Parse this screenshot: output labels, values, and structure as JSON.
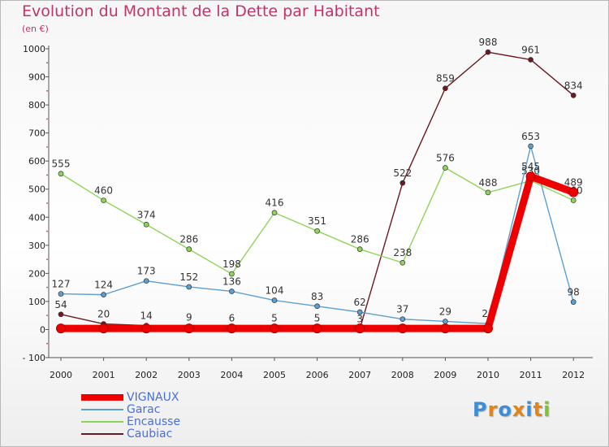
{
  "title": "Evolution du Montant de la Dette par Habitant",
  "unit_label": "(en €)",
  "logo": {
    "letters": [
      "P",
      "r",
      "o",
      "x",
      "i",
      "t",
      "i"
    ],
    "colors": [
      "#3a8fd8",
      "#e0851a",
      "#3a8fd8",
      "#e0851a",
      "#3a8fd8",
      "#e0851a",
      "#7cc23a"
    ]
  },
  "chart_data": {
    "type": "line",
    "x": [
      "2000",
      "2001",
      "2002",
      "2003",
      "2004",
      "2005",
      "2006",
      "2007",
      "2008",
      "2009",
      "2010",
      "2011",
      "2012"
    ],
    "ylim": [
      -100,
      1000
    ],
    "yticks": [
      -100,
      0,
      100,
      200,
      300,
      400,
      500,
      600,
      700,
      800,
      900,
      1000
    ],
    "ytick_labels": [
      "- 100",
      "0",
      "100",
      "200",
      "300",
      "400",
      "500",
      "600",
      "700",
      "800",
      "900",
      "1000"
    ],
    "grid": false,
    "legend_position": "bottom-left",
    "series": [
      {
        "name": "Caubiac",
        "color": "#6b1a1f",
        "values": [
          54,
          20,
          14,
          9,
          6,
          5,
          5,
          3,
          522,
          859,
          988,
          961,
          834
        ],
        "labels": [
          "54",
          "20",
          "14",
          "9",
          "6",
          "5",
          "5",
          "3",
          "522",
          "859",
          "988",
          "961",
          "834"
        ]
      },
      {
        "name": "Encausse",
        "color": "#8fd45a",
        "values": [
          555,
          460,
          374,
          286,
          198,
          416,
          351,
          286,
          238,
          576,
          488,
          530,
          460
        ],
        "labels": [
          "555",
          "460",
          "374",
          "286",
          "198",
          "416",
          "351",
          "286",
          "238",
          "576",
          "488",
          "530",
          "460"
        ]
      },
      {
        "name": "Garac",
        "color": "#5b9fd3",
        "values": [
          127,
          124,
          173,
          152,
          136,
          104,
          83,
          62,
          37,
          29,
          21,
          653,
          98
        ],
        "labels": [
          "127",
          "124",
          "173",
          "152",
          "136",
          "104",
          "83",
          "62",
          "37",
          "29",
          "21",
          "653",
          "98"
        ]
      },
      {
        "name": "VIGNAUX",
        "color": "#ee0000",
        "values": [
          4,
          4,
          4,
          4,
          4,
          4,
          4,
          4,
          4,
          4,
          4,
          545,
          489
        ],
        "labels": [
          "",
          "",
          "",
          "",
          "",
          "",
          "",
          "",
          "",
          "",
          "",
          "545",
          "489"
        ]
      }
    ]
  },
  "legend": [
    {
      "name": "VIGNAUX",
      "color": "#ee0000"
    },
    {
      "name": "Garac",
      "color": "#5b9fd3"
    },
    {
      "name": "Encausse",
      "color": "#8fd45a"
    },
    {
      "name": "Caubiac",
      "color": "#6b1a1f"
    }
  ]
}
